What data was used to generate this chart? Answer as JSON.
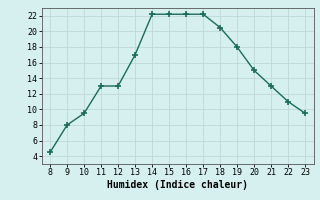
{
  "x": [
    8,
    9,
    10,
    11,
    12,
    13,
    14,
    15,
    16,
    17,
    18,
    19,
    20,
    21,
    22,
    23
  ],
  "y": [
    4.5,
    8.0,
    9.5,
    13.0,
    13.0,
    17.0,
    22.2,
    22.2,
    22.2,
    22.2,
    20.5,
    18.0,
    15.0,
    13.0,
    11.0,
    9.5
  ],
  "xlabel": "Humidex (Indice chaleur)",
  "xlim": [
    7.5,
    23.5
  ],
  "ylim": [
    3,
    23
  ],
  "xticks": [
    8,
    9,
    10,
    11,
    12,
    13,
    14,
    15,
    16,
    17,
    18,
    19,
    20,
    21,
    22,
    23
  ],
  "yticks": [
    4,
    6,
    8,
    10,
    12,
    14,
    16,
    18,
    20,
    22
  ],
  "line_color": "#1a6b5a",
  "marker": "+",
  "marker_size": 4,
  "marker_linewidth": 1.2,
  "bg_color": "#d6f0ef",
  "grid_color": "#c0d8d8",
  "linewidth": 1.0,
  "tick_labelsize": 6,
  "xlabel_fontsize": 7
}
